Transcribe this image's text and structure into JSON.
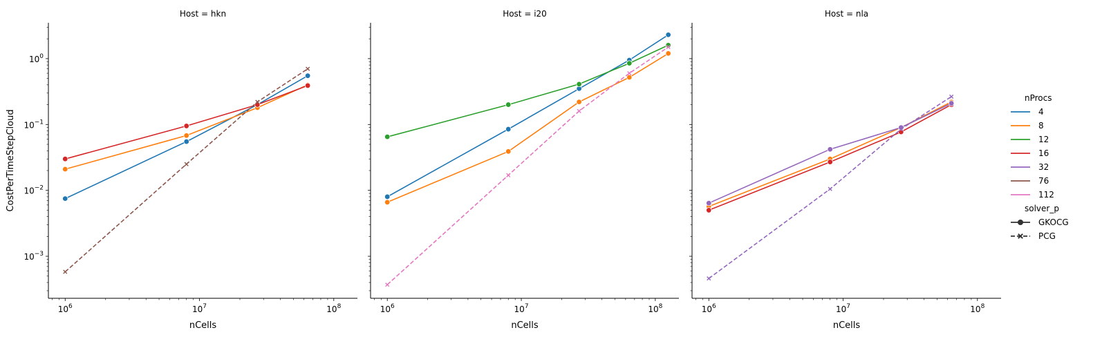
{
  "chart_data": {
    "type": "line",
    "facet_variable": "Host",
    "facet_titles": [
      "Host = hkn",
      "Host = i20",
      "Host = nla"
    ],
    "xlabel": "nCells",
    "ylabel": "CostPerTimeStepCloud",
    "x_scale": "log",
    "y_scale": "log",
    "xlim": [
      750000,
      150000000
    ],
    "ylim": [
      0.00023,
      3.5
    ],
    "x_ticks": [
      1000000,
      10000000,
      100000000
    ],
    "x_tick_labels": [
      {
        "base": "10",
        "exp": "6"
      },
      {
        "base": "10",
        "exp": "7"
      },
      {
        "base": "10",
        "exp": "8"
      }
    ],
    "y_ticks": [
      0.001,
      0.01,
      0.1,
      1
    ],
    "y_tick_labels": [
      {
        "base": "10",
        "exp": "−3"
      },
      {
        "base": "10",
        "exp": "−2"
      },
      {
        "base": "10",
        "exp": "−1"
      },
      {
        "base": "10",
        "exp": "0"
      }
    ],
    "grid": false,
    "legend_position": "right",
    "legend": {
      "hue_title": "nProcs",
      "hue_entries": [
        {
          "label": "4",
          "color": "#1f77b4"
        },
        {
          "label": "8",
          "color": "#ff7f0e"
        },
        {
          "label": "12",
          "color": "#2ca02c"
        },
        {
          "label": "16",
          "color": "#d62728"
        },
        {
          "label": "32",
          "color": "#9467bd"
        },
        {
          "label": "76",
          "color": "#8c564b"
        },
        {
          "label": "112",
          "color": "#e377c2"
        }
      ],
      "style_title": "solver_p",
      "style_entries": [
        {
          "label": "GKOCG",
          "marker": "circle",
          "dash": "solid"
        },
        {
          "label": "PCG",
          "marker": "x",
          "dash": "dashed"
        }
      ]
    },
    "panels": [
      {
        "host": "hkn",
        "series": [
          {
            "nProcs": "4",
            "solver": "GKOCG",
            "color": "#1f77b4",
            "x": [
              1000000,
              8000000,
              27000000,
              64000000
            ],
            "y": [
              0.0075,
              0.055,
              0.2,
              0.55
            ]
          },
          {
            "nProcs": "8",
            "solver": "GKOCG",
            "color": "#ff7f0e",
            "x": [
              1000000,
              8000000,
              27000000,
              64000000
            ],
            "y": [
              0.021,
              0.068,
              0.18,
              0.4
            ]
          },
          {
            "nProcs": "16",
            "solver": "GKOCG",
            "color": "#d62728",
            "x": [
              1000000,
              8000000,
              27000000,
              64000000
            ],
            "y": [
              0.03,
              0.095,
              0.2,
              0.39
            ]
          },
          {
            "nProcs": "76",
            "solver": "PCG",
            "color": "#8c564b",
            "x": [
              1000000,
              8000000,
              27000000,
              64000000
            ],
            "y": [
              0.00058,
              0.025,
              0.22,
              0.7
            ]
          }
        ]
      },
      {
        "host": "i20",
        "series": [
          {
            "nProcs": "4",
            "solver": "GKOCG",
            "color": "#1f77b4",
            "x": [
              1000000,
              8000000,
              27000000,
              64000000,
              125000000
            ],
            "y": [
              0.008,
              0.085,
              0.35,
              0.95,
              2.3
            ]
          },
          {
            "nProcs": "8",
            "solver": "GKOCG",
            "color": "#ff7f0e",
            "x": [
              1000000,
              8000000,
              27000000,
              64000000,
              125000000
            ],
            "y": [
              0.0066,
              0.039,
              0.22,
              0.52,
              1.2
            ]
          },
          {
            "nProcs": "12",
            "solver": "GKOCG",
            "color": "#2ca02c",
            "x": [
              1000000,
              8000000,
              27000000,
              64000000,
              125000000
            ],
            "y": [
              0.065,
              0.2,
              0.41,
              0.85,
              1.6
            ]
          },
          {
            "nProcs": "112",
            "solver": "PCG",
            "color": "#e377c2",
            "x": [
              1000000,
              8000000,
              27000000,
              64000000,
              125000000
            ],
            "y": [
              0.00037,
              0.017,
              0.16,
              0.6,
              1.5
            ]
          }
        ]
      },
      {
        "host": "nla",
        "series": [
          {
            "nProcs": "8",
            "solver": "GKOCG",
            "color": "#ff7f0e",
            "x": [
              1000000,
              8000000,
              27000000,
              64000000
            ],
            "y": [
              0.0057,
              0.03,
              0.09,
              0.22
            ]
          },
          {
            "nProcs": "16",
            "solver": "GKOCG",
            "color": "#d62728",
            "x": [
              1000000,
              8000000,
              27000000,
              64000000
            ],
            "y": [
              0.005,
              0.027,
              0.077,
              0.2
            ]
          },
          {
            "nProcs": "32",
            "solver": "GKOCG",
            "color": "#9467bd",
            "x": [
              1000000,
              8000000,
              27000000,
              64000000
            ],
            "y": [
              0.0064,
              0.042,
              0.09,
              0.21
            ]
          },
          {
            "nProcs": "32",
            "solver": "PCG",
            "color": "#9467bd",
            "x": [
              1000000,
              8000000,
              27000000,
              64000000
            ],
            "y": [
              0.00046,
              0.0105,
              0.085,
              0.265
            ]
          }
        ]
      }
    ]
  }
}
